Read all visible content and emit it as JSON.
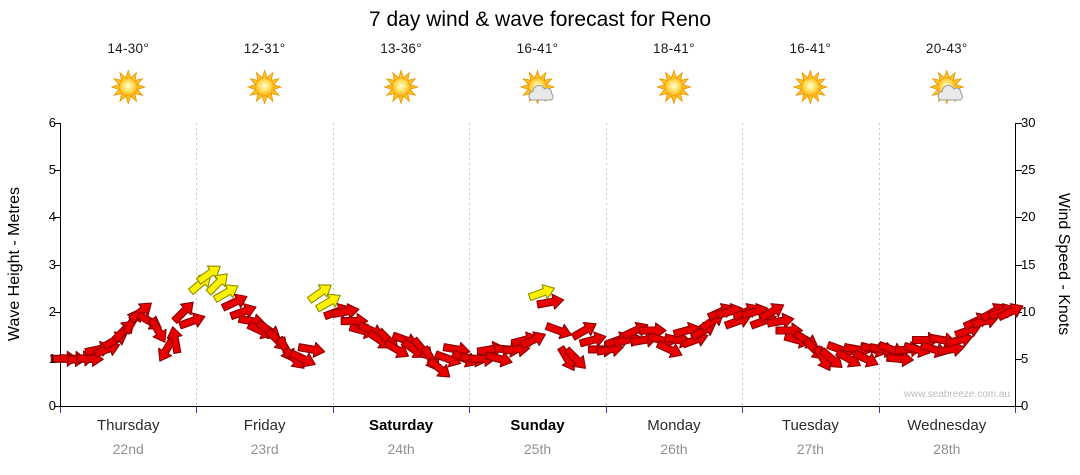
{
  "title": "7 day wind & wave forecast for Reno",
  "watermark": "www.seabreeze.com.au",
  "days": [
    {
      "name": "Thursday",
      "date": "22nd",
      "temp": "14-30°",
      "icon": "sun",
      "bold": false
    },
    {
      "name": "Friday",
      "date": "23rd",
      "temp": "12-31°",
      "icon": "sun",
      "bold": false
    },
    {
      "name": "Saturday",
      "date": "24th",
      "temp": "13-36°",
      "icon": "sun",
      "bold": true
    },
    {
      "name": "Sunday",
      "date": "25th",
      "temp": "16-41°",
      "icon": "sun-cloud",
      "bold": true
    },
    {
      "name": "Monday",
      "date": "26th",
      "temp": "18-41°",
      "icon": "sun",
      "bold": false
    },
    {
      "name": "Tuesday",
      "date": "27th",
      "temp": "16-41°",
      "icon": "sun",
      "bold": false
    },
    {
      "name": "Wednesday",
      "date": "28th",
      "temp": "20-43°",
      "icon": "sun-cloud",
      "bold": false
    }
  ],
  "chart_data": {
    "type": "scatter",
    "subtype": "wind-direction-arrows",
    "title": "7 day wind & wave forecast for Reno",
    "x_categories": [
      "Thursday 22nd",
      "Friday 23rd",
      "Saturday 24th",
      "Sunday 25th",
      "Monday 26th",
      "Tuesday 27th",
      "Wednesday 28th"
    ],
    "points_per_day": 16,
    "point_format": [
      "wind_speed_knots",
      "arrow_rotation_deg_clockwise_from_east",
      "strong_yellow_flag"
    ],
    "points": [
      [
        5,
        0,
        0
      ],
      [
        5,
        3,
        0
      ],
      [
        5,
        -6,
        0
      ],
      [
        5,
        2,
        0
      ],
      [
        6,
        -12,
        0
      ],
      [
        6,
        -20,
        0
      ],
      [
        7,
        -30,
        0
      ],
      [
        8,
        -45,
        0
      ],
      [
        9,
        -60,
        0
      ],
      [
        10,
        -40,
        0
      ],
      [
        9,
        30,
        0
      ],
      [
        8,
        60,
        0
      ],
      [
        6,
        120,
        0
      ],
      [
        7,
        -100,
        0
      ],
      [
        10,
        -45,
        0
      ],
      [
        9,
        -20,
        0
      ],
      [
        13,
        -40,
        1
      ],
      [
        14,
        -35,
        1
      ],
      [
        13,
        -45,
        1
      ],
      [
        12,
        -30,
        1
      ],
      [
        11,
        -25,
        0
      ],
      [
        10,
        -20,
        0
      ],
      [
        9,
        10,
        0
      ],
      [
        8,
        25,
        0
      ],
      [
        8,
        35,
        0
      ],
      [
        7,
        45,
        0
      ],
      [
        6,
        60,
        0
      ],
      [
        5,
        45,
        0
      ],
      [
        5,
        25,
        0
      ],
      [
        6,
        10,
        0
      ],
      [
        12,
        -35,
        1
      ],
      [
        11,
        -30,
        1
      ],
      [
        10,
        -20,
        0
      ],
      [
        10,
        -10,
        0
      ],
      [
        9,
        0,
        0
      ],
      [
        8,
        15,
        0
      ],
      [
        8,
        25,
        0
      ],
      [
        7,
        35,
        0
      ],
      [
        7,
        45,
        0
      ],
      [
        6,
        30,
        0
      ],
      [
        7,
        20,
        0
      ],
      [
        6,
        35,
        0
      ],
      [
        6,
        50,
        0
      ],
      [
        5,
        60,
        0
      ],
      [
        4,
        40,
        0
      ],
      [
        5,
        20,
        0
      ],
      [
        6,
        10,
        0
      ],
      [
        5,
        25,
        0
      ],
      [
        5,
        10,
        0
      ],
      [
        5,
        0,
        0
      ],
      [
        6,
        -10,
        0
      ],
      [
        5,
        15,
        0
      ],
      [
        6,
        5,
        0
      ],
      [
        6,
        -5,
        0
      ],
      [
        7,
        -15,
        0
      ],
      [
        7,
        -25,
        0
      ],
      [
        12,
        -20,
        1
      ],
      [
        11,
        -10,
        0
      ],
      [
        8,
        20,
        0
      ],
      [
        5,
        60,
        0
      ],
      [
        5,
        45,
        0
      ],
      [
        8,
        -30,
        0
      ],
      [
        7,
        -15,
        0
      ],
      [
        6,
        0,
        0
      ],
      [
        6,
        -10,
        0
      ],
      [
        7,
        -20,
        0
      ],
      [
        7,
        -15,
        0
      ],
      [
        8,
        -25,
        0
      ],
      [
        7,
        -10,
        0
      ],
      [
        8,
        0,
        0
      ],
      [
        7,
        15,
        0
      ],
      [
        6,
        25,
        0
      ],
      [
        7,
        10,
        0
      ],
      [
        8,
        -15,
        0
      ],
      [
        7,
        -20,
        0
      ],
      [
        8,
        -30,
        0
      ],
      [
        9,
        -35,
        0
      ],
      [
        10,
        -25,
        0
      ],
      [
        10,
        -15,
        0
      ],
      [
        9,
        -20,
        0
      ],
      [
        10,
        -25,
        0
      ],
      [
        10,
        -15,
        0
      ],
      [
        9,
        -20,
        0
      ],
      [
        10,
        -30,
        0
      ],
      [
        9,
        -10,
        0
      ],
      [
        8,
        0,
        0
      ],
      [
        7,
        15,
        0
      ],
      [
        7,
        30,
        0
      ],
      [
        6,
        45,
        0
      ],
      [
        5,
        60,
        0
      ],
      [
        5,
        40,
        0
      ],
      [
        6,
        20,
        0
      ],
      [
        5,
        30,
        0
      ],
      [
        6,
        10,
        0
      ],
      [
        5,
        25,
        0
      ],
      [
        6,
        15,
        0
      ],
      [
        6,
        10,
        0
      ],
      [
        6,
        20,
        0
      ],
      [
        5,
        5,
        0
      ],
      [
        6,
        -5,
        0
      ],
      [
        6,
        15,
        0
      ],
      [
        7,
        0,
        0
      ],
      [
        6,
        20,
        0
      ],
      [
        7,
        10,
        0
      ],
      [
        6,
        -10,
        0
      ],
      [
        7,
        -15,
        0
      ],
      [
        8,
        -20,
        0
      ],
      [
        9,
        -25,
        0
      ],
      [
        9,
        -15,
        0
      ],
      [
        10,
        -30,
        0
      ],
      [
        10,
        -20,
        0
      ],
      [
        10,
        -25,
        0
      ]
    ],
    "y_left": {
      "label": "Wave Height - Metres",
      "range": [
        0,
        6
      ],
      "ticks": [
        0,
        1,
        2,
        3,
        4,
        5,
        6
      ]
    },
    "y_right": {
      "label": "Wind Speed - Knots",
      "range": [
        0,
        30
      ],
      "ticks": [
        0,
        5,
        10,
        15,
        20,
        25,
        30
      ]
    },
    "grid": "vertical-dashed-day-separators",
    "colors": {
      "arrow_red": "#e60000",
      "arrow_red_outline": "#8b0000",
      "arrow_yellow": "#ffef00",
      "arrow_yellow_outline": "#8f8f00",
      "axis": "#000000",
      "x_tick": "#3434cc",
      "grid_line": "#c8c8c8",
      "sun": "#ffc125",
      "cloud": "#e9e9e9"
    }
  }
}
